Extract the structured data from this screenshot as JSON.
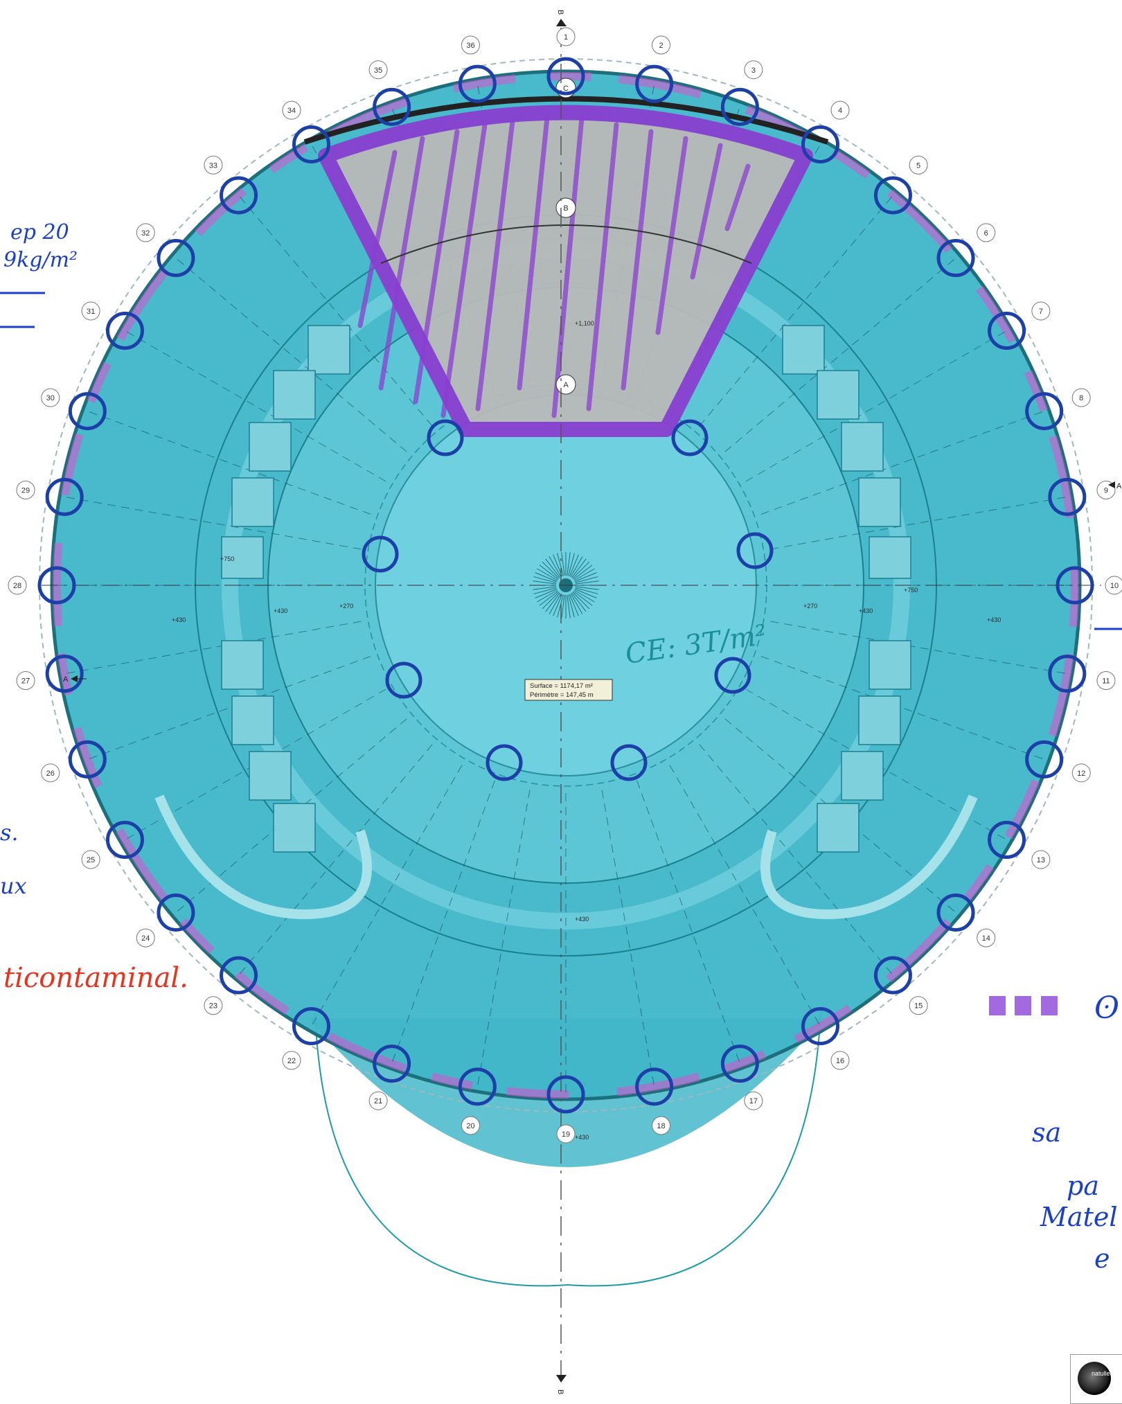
{
  "plan": {
    "section_markers": {
      "top": "B",
      "bottom": "B",
      "left": "A",
      "right": "A"
    },
    "grid_axes": [
      "1",
      "2",
      "3",
      "4",
      "5",
      "6",
      "7",
      "8",
      "9",
      "10",
      "11",
      "12",
      "13",
      "14",
      "15",
      "16",
      "17",
      "18",
      "19",
      "20",
      "21",
      "22",
      "23",
      "24",
      "25",
      "26",
      "27",
      "28",
      "29",
      "30",
      "31",
      "32",
      "33",
      "34",
      "35",
      "36"
    ],
    "ring_labels": {
      "outer": "C",
      "middle": "B",
      "inner": "A"
    },
    "elevations": {
      "stage": "+1,100",
      "west_stair": "+750",
      "east_stair": "+750",
      "west_corridor": "+430",
      "west_hall": "+430",
      "west_ring": "+270",
      "east_ring": "+270",
      "east_hall": "+430",
      "east_corridor": "+430",
      "south_hall": "+430",
      "south_entry": "+430"
    },
    "info_box": {
      "surface": "Surface = 1174,17 m²",
      "perimetre": "Périmètre = 147,45 m"
    }
  },
  "annotations": {
    "load_center": "CE: 3T/m²",
    "top_left_line1": "ep 20",
    "top_left_line2": "9kg/m²",
    "left_mid_1": "s.",
    "left_mid_2": "ux",
    "left_red": "ticontaminal.",
    "right_bottom_1": "sa",
    "right_bottom_2": "pa",
    "right_bottom_3": "Matel",
    "right_bottom_4": "e",
    "legend_right": "ʘ"
  },
  "colors": {
    "floor_fill": "#3fb6c8",
    "inner_fill": "#6fd0df",
    "stage_fill": "#b9b9b9",
    "purple": "#8a3fd0",
    "magenta": "#e04fd0",
    "column_circle": "#1c3fa8",
    "red_text": "#e8321e",
    "blue_ink": "#1a3fc8",
    "teal_text": "#1a8f9a"
  },
  "logo": {
    "text": "natullec"
  }
}
